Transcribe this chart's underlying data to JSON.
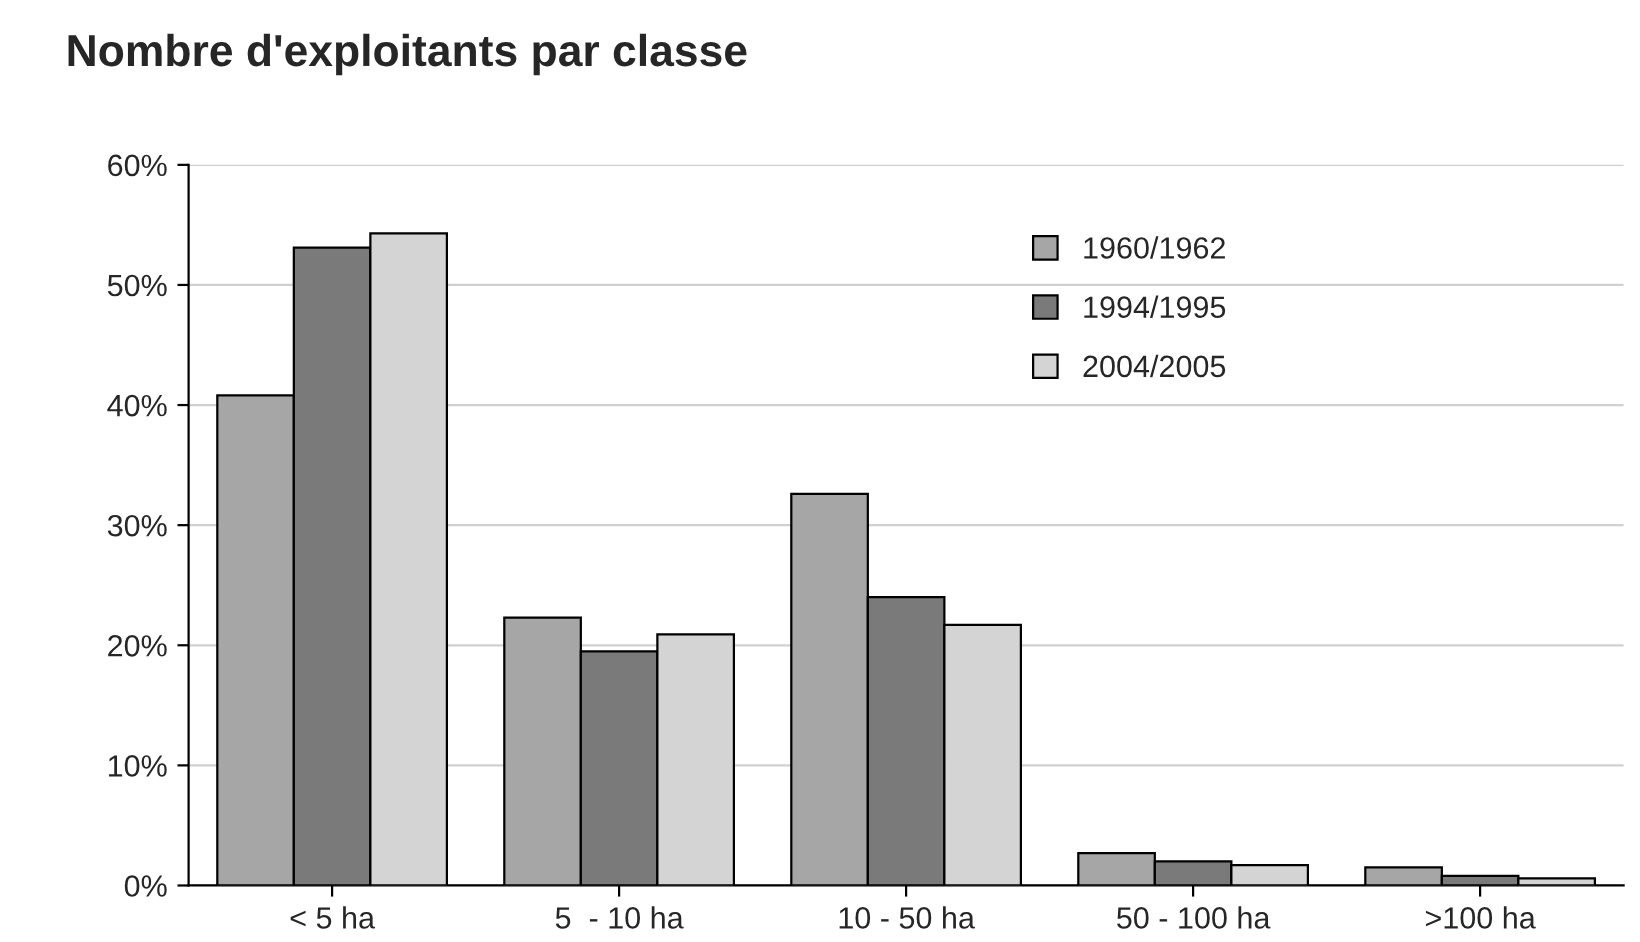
{
  "chart_data": {
    "type": "bar",
    "title": "Nombre d'exploitants par classe",
    "categories": [
      "< 5 ha",
      "5  - 10 ha",
      "10 - 50 ha",
      "50 - 100 ha",
      ">100 ha"
    ],
    "series": [
      {
        "name": "1960/1962",
        "color": "#a6a6a6",
        "values": [
          40.8,
          22.3,
          32.6,
          2.7,
          1.5
        ]
      },
      {
        "name": "1994/1995",
        "color": "#7a7a7a",
        "values": [
          53.1,
          19.5,
          24.0,
          2.0,
          0.8
        ]
      },
      {
        "name": "2004/2005",
        "color": "#d4d4d4",
        "values": [
          54.3,
          20.9,
          21.7,
          1.7,
          0.6
        ]
      }
    ],
    "ylim": [
      0,
      60
    ],
    "yticks": [
      {
        "value": 0,
        "label": "0%"
      },
      {
        "value": 10,
        "label": "10%"
      },
      {
        "value": 20,
        "label": "20%"
      },
      {
        "value": 30,
        "label": "30%"
      },
      {
        "value": 40,
        "label": "40%"
      },
      {
        "value": 50,
        "label": "50%"
      },
      {
        "value": 60,
        "label": "60%"
      }
    ],
    "grid": "y",
    "legend": "top right"
  }
}
